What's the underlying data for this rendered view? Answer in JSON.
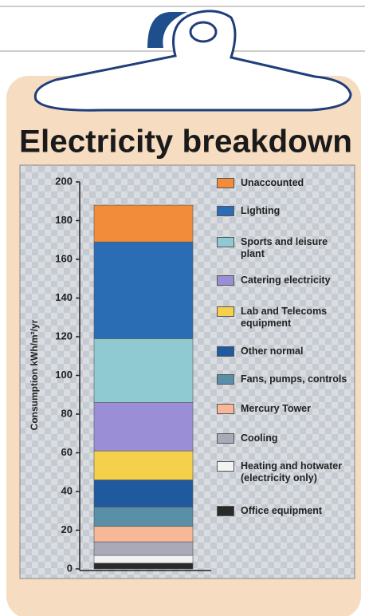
{
  "chart_data": {
    "type": "stacked-bar",
    "title": "Electricity breakdown",
    "y_label": "Consumption kWh/m²/yr",
    "ylim": [
      0,
      200
    ],
    "yticks": [
      0,
      20,
      40,
      60,
      80,
      100,
      120,
      140,
      160,
      180,
      200
    ],
    "series": [
      {
        "name": "Office equipment",
        "color": "#2a2a2a",
        "values": [
          3
        ]
      },
      {
        "name": "Heating and hotwater (electricity only)",
        "color": "#f2f2f2",
        "values": [
          4
        ]
      },
      {
        "name": "Cooling",
        "color": "#a9a9b8",
        "values": [
          7
        ]
      },
      {
        "name": "Mercury Tower",
        "color": "#f6b896",
        "values": [
          8
        ]
      },
      {
        "name": "Fans, pumps, controls",
        "color": "#5a8fa8",
        "values": [
          10
        ]
      },
      {
        "name": "Other normal",
        "color": "#1f5a9e",
        "values": [
          14
        ]
      },
      {
        "name": "Lab and Telecoms equipment",
        "color": "#f5d04a",
        "values": [
          15
        ]
      },
      {
        "name": "Catering electricity",
        "color": "#9a8fd6",
        "values": [
          25
        ]
      },
      {
        "name": "Sports and leisure plant",
        "color": "#8fcad3",
        "values": [
          33
        ]
      },
      {
        "name": "Lighting",
        "color": "#2a6db5",
        "values": [
          50
        ]
      },
      {
        "name": "Unaccounted",
        "color": "#f28c3a",
        "values": [
          19
        ]
      }
    ]
  }
}
